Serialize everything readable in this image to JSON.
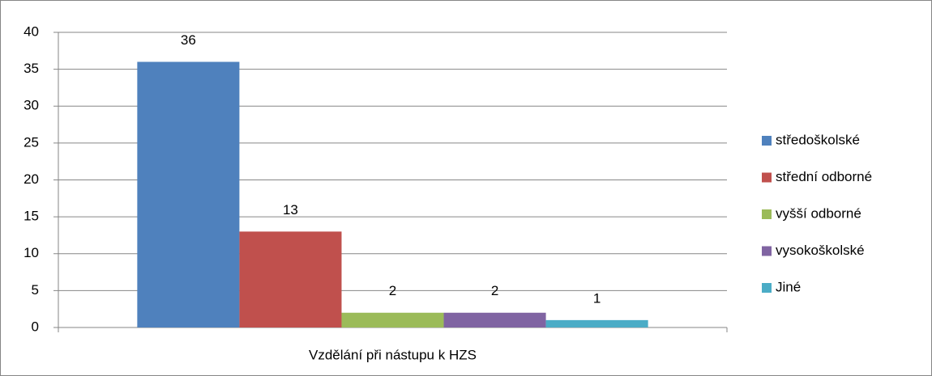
{
  "chart_data": {
    "type": "bar",
    "categories": [
      "Vzdělání při nástupu k HZS"
    ],
    "series": [
      {
        "name": "středoškolské",
        "color": "#4f81bd",
        "values": [
          36
        ]
      },
      {
        "name": "střední odborné",
        "color": "#c0504d",
        "values": [
          13
        ]
      },
      {
        "name": "vyšší odborné",
        "color": "#9bbb59",
        "values": [
          2
        ]
      },
      {
        "name": "vysokoškolské",
        "color": "#8064a2",
        "values": [
          2
        ]
      },
      {
        "name": "Jiné",
        "color": "#4bacc6",
        "values": [
          1
        ]
      }
    ],
    "ylim": [
      0,
      40
    ],
    "yticks": [
      0,
      5,
      10,
      15,
      20,
      25,
      30,
      35,
      40
    ],
    "grid": true,
    "legend": "right",
    "data_labels": true
  }
}
